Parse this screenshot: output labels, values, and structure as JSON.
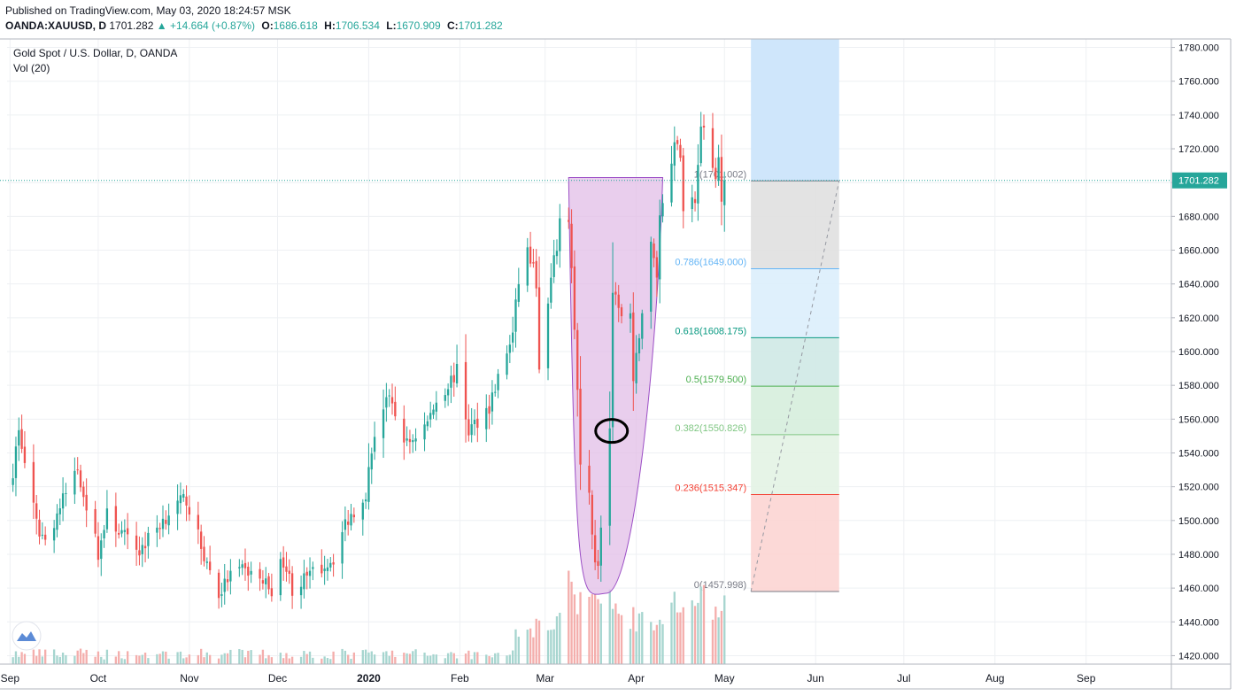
{
  "header": {
    "published": "Published on TradingView.com, May 03, 2020 18:24:57 MSK",
    "symbol": "OANDA:XAUUSD, D",
    "last": "1701.282",
    "change": "+14.664 (+0.87%)",
    "o_label": "O:",
    "o_value": "1686.618",
    "h_label": "H:",
    "h_value": "1706.534",
    "l_label": "L:",
    "l_value": "1670.909",
    "c_label": "C:",
    "c_value": "1701.282"
  },
  "legend": {
    "title": "Gold Spot / U.S. Dollar, D, OANDA",
    "volume": "Vol (20)"
  },
  "colors": {
    "up": "#26a69a",
    "down": "#ef5350",
    "vol_up": "#a6d5cf",
    "vol_down": "#f4aeac",
    "pattern_fill": "#e1bee7",
    "pattern_stroke": "#9c4fc6",
    "price_line": "#26a69a"
  },
  "chart_data": {
    "type": "candlestick",
    "title": "Gold Spot / U.S. Dollar, D, OANDA",
    "y_range": [
      1415,
      1785
    ],
    "y_ticks": [
      "1420.000",
      "1440.000",
      "1460.000",
      "1480.000",
      "1500.000",
      "1520.000",
      "1540.000",
      "1560.000",
      "1580.000",
      "1600.000",
      "1620.000",
      "1640.000",
      "1660.000",
      "1680.000",
      "1700.000",
      "1720.000",
      "1740.000",
      "1760.000",
      "1780.000"
    ],
    "x_range": [
      "2019-08-31",
      "2020-09-30"
    ],
    "x_ticks": [
      {
        "date": "2019-09-01",
        "label": "Sep"
      },
      {
        "date": "2019-10-01",
        "label": "Oct"
      },
      {
        "date": "2019-11-01",
        "label": "Nov"
      },
      {
        "date": "2019-12-01",
        "label": "Dec"
      },
      {
        "date": "2020-01-01",
        "label": "2020"
      },
      {
        "date": "2020-02-01",
        "label": "Feb"
      },
      {
        "date": "2020-03-01",
        "label": "Mar"
      },
      {
        "date": "2020-04-01",
        "label": "Apr"
      },
      {
        "date": "2020-05-01",
        "label": "May"
      },
      {
        "date": "2020-06-01",
        "label": "Jun"
      },
      {
        "date": "2020-07-01",
        "label": "Jul"
      },
      {
        "date": "2020-08-01",
        "label": "Aug"
      },
      {
        "date": "2020-09-01",
        "label": "Sep"
      }
    ],
    "last_price": {
      "value": 1701.282,
      "label": "1701.282"
    },
    "series_start": "2019-09-02",
    "series_end": "2020-05-01",
    "close_anchors": [
      [
        "2019-09-02",
        1530
      ],
      [
        "2019-09-04",
        1553
      ],
      [
        "2019-09-10",
        1497
      ],
      [
        "2019-09-13",
        1488
      ],
      [
        "2019-09-20",
        1516
      ],
      [
        "2019-09-24",
        1531
      ],
      [
        "2019-10-01",
        1481
      ],
      [
        "2019-10-04",
        1503
      ],
      [
        "2019-10-11",
        1488
      ],
      [
        "2019-10-15",
        1482
      ],
      [
        "2019-10-25",
        1505
      ],
      [
        "2019-10-31",
        1513
      ],
      [
        "2019-11-05",
        1484
      ],
      [
        "2019-11-11",
        1456
      ],
      [
        "2019-11-15",
        1468
      ],
      [
        "2019-11-21",
        1470
      ],
      [
        "2019-11-29",
        1460
      ],
      [
        "2019-12-03",
        1477
      ],
      [
        "2019-12-06",
        1460
      ],
      [
        "2019-12-12",
        1467
      ],
      [
        "2019-12-20",
        1478
      ],
      [
        "2019-12-24",
        1498
      ],
      [
        "2019-12-31",
        1517
      ],
      [
        "2020-01-03",
        1552
      ],
      [
        "2020-01-07",
        1573
      ],
      [
        "2020-01-10",
        1562
      ],
      [
        "2020-01-14",
        1545
      ],
      [
        "2020-01-21",
        1558
      ],
      [
        "2020-01-24",
        1571
      ],
      [
        "2020-01-31",
        1588
      ],
      [
        "2020-02-04",
        1553
      ],
      [
        "2020-02-11",
        1568
      ],
      [
        "2020-02-14",
        1584
      ],
      [
        "2020-02-19",
        1610
      ],
      [
        "2020-02-21",
        1642
      ],
      [
        "2020-02-24",
        1660
      ],
      [
        "2020-02-27",
        1642
      ],
      [
        "2020-02-28",
        1586
      ],
      [
        "2020-03-03",
        1641
      ],
      [
        "2020-03-06",
        1674
      ],
      [
        "2020-03-09",
        1680
      ],
      [
        "2020-03-10",
        1649
      ],
      [
        "2020-03-12",
        1576
      ],
      [
        "2020-03-13",
        1529
      ],
      [
        "2020-03-16",
        1513
      ],
      [
        "2020-03-18",
        1478
      ],
      [
        "2020-03-19",
        1471
      ],
      [
        "2020-03-20",
        1498
      ],
      [
        "2020-03-23",
        1554
      ],
      [
        "2020-03-24",
        1630
      ],
      [
        "2020-03-26",
        1629
      ],
      [
        "2020-03-27",
        1619
      ],
      [
        "2020-03-30",
        1622
      ],
      [
        "2020-03-31",
        1578
      ],
      [
        "2020-04-02",
        1612
      ],
      [
        "2020-04-06",
        1662
      ],
      [
        "2020-04-08",
        1646
      ],
      [
        "2020-04-09",
        1680
      ],
      [
        "2020-04-13",
        1714
      ],
      [
        "2020-04-14",
        1728
      ],
      [
        "2020-04-16",
        1716
      ],
      [
        "2020-04-17",
        1683
      ],
      [
        "2020-04-20",
        1695
      ],
      [
        "2020-04-21",
        1686
      ],
      [
        "2020-04-22",
        1714
      ],
      [
        "2020-04-23",
        1730
      ],
      [
        "2020-04-24",
        1728
      ],
      [
        "2020-04-27",
        1706
      ],
      [
        "2020-04-28",
        1707
      ],
      [
        "2020-04-29",
        1715
      ],
      [
        "2020-04-30",
        1686
      ],
      [
        "2020-05-01",
        1701.282
      ]
    ],
    "fibonacci": {
      "start_date": "2020-05-10",
      "end_date": "2020-06-09",
      "levels": [
        {
          "ratio": 1,
          "price": 1701.002,
          "label": "1(1701.002)",
          "color": "#787b86",
          "fill": "#e0e0e0"
        },
        {
          "ratio": 0.786,
          "price": 1649.0,
          "label": "0.786(1649.000)",
          "color": "#64b5f6",
          "fill": "#dbeefc"
        },
        {
          "ratio": 0.618,
          "price": 1608.175,
          "label": "0.618(1608.175)",
          "color": "#089981",
          "fill": "#cfe9e5"
        },
        {
          "ratio": 0.5,
          "price": 1579.5,
          "label": "0.5(1579.500)",
          "color": "#4caf50",
          "fill": "#d6eedd"
        },
        {
          "ratio": 0.382,
          "price": 1550.826,
          "label": "0.382(1550.826)",
          "color": "#81c784",
          "fill": "#e3f3e4"
        },
        {
          "ratio": 0.236,
          "price": 1515.347,
          "label": "0.236(1515.347)",
          "color": "#f44336",
          "fill": "#fcd5d3"
        },
        {
          "ratio": 0,
          "price": 1457.998,
          "label": "0(1457.998)",
          "color": "#787b86",
          "fill": null
        }
      ],
      "extension_fill": "#cfe6fb",
      "extension_top_price": 1785
    },
    "pattern": {
      "type": "cup",
      "left": [
        "2020-03-09",
        1703
      ],
      "right": [
        "2020-04-10",
        1703
      ],
      "bottom": [
        "2020-03-22",
        1457
      ]
    },
    "annotation_circle": [
      "2020-03-23",
      1553
    ]
  }
}
